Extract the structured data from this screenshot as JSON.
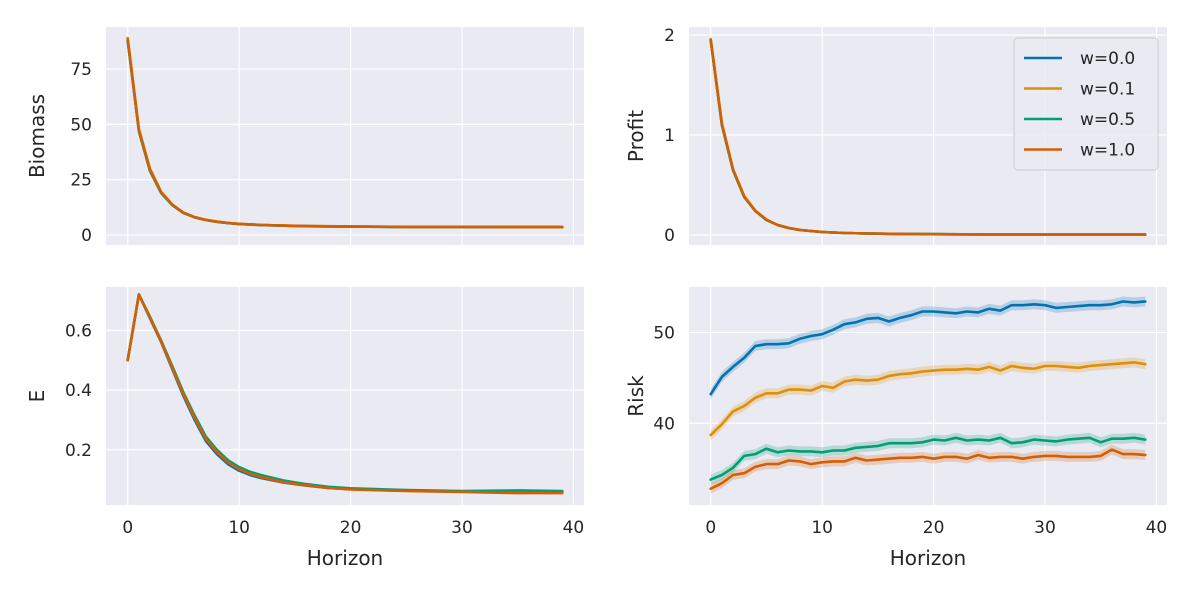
{
  "chart_data": [
    {
      "type": "line",
      "panel": "top-left",
      "title": "",
      "xlabel": "",
      "ylabel": "Biomass",
      "xlim": [
        -1.95,
        40.95
      ],
      "ylim": [
        -4.5,
        94.0
      ],
      "xticks": [
        0,
        10,
        20,
        30,
        40
      ],
      "yticks": [
        0,
        25,
        50,
        75
      ],
      "show_xticklabels": false,
      "grid": true,
      "series": [
        {
          "name": "w=0.0",
          "color": "#0173b2",
          "x": [
            0,
            1,
            2,
            3,
            4,
            5,
            6,
            7,
            8,
            9,
            10,
            12,
            14,
            16,
            18,
            20,
            25,
            30,
            35,
            39
          ],
          "values": [
            88,
            47,
            29,
            19,
            13.5,
            10,
            8,
            6.8,
            6,
            5.4,
            5,
            4.5,
            4.2,
            4,
            3.9,
            3.8,
            3.7,
            3.7,
            3.6,
            3.6
          ]
        },
        {
          "name": "w=0.1",
          "color": "#de8f05",
          "x": [
            0,
            1,
            2,
            3,
            4,
            5,
            6,
            7,
            8,
            9,
            10,
            12,
            14,
            16,
            18,
            20,
            25,
            30,
            35,
            39
          ],
          "values": [
            89,
            48,
            30,
            19.5,
            13.8,
            10.2,
            8.1,
            6.9,
            6.1,
            5.5,
            5.1,
            4.6,
            4.3,
            4.1,
            4,
            3.9,
            3.7,
            3.7,
            3.6,
            3.6
          ]
        },
        {
          "name": "w=0.5",
          "color": "#029e73",
          "x": [
            0,
            1,
            2,
            3,
            4,
            5,
            6,
            7,
            8,
            9,
            10,
            12,
            14,
            16,
            18,
            20,
            25,
            30,
            35,
            39
          ],
          "values": [
            88,
            47,
            29,
            19,
            13.6,
            10,
            8,
            6.8,
            6,
            5.4,
            5,
            4.5,
            4.2,
            4,
            3.9,
            3.8,
            3.7,
            3.7,
            3.6,
            3.6
          ]
        },
        {
          "name": "w=1.0",
          "color": "#d55e00",
          "x": [
            0,
            1,
            2,
            3,
            4,
            5,
            6,
            7,
            8,
            9,
            10,
            12,
            14,
            16,
            18,
            20,
            25,
            30,
            35,
            39
          ],
          "values": [
            88.5,
            47.5,
            29.5,
            19.3,
            13.7,
            10.1,
            8.05,
            6.85,
            6.05,
            5.45,
            5.05,
            4.55,
            4.25,
            4.05,
            3.95,
            3.85,
            3.7,
            3.7,
            3.6,
            3.6
          ]
        }
      ]
    },
    {
      "type": "line",
      "panel": "top-right",
      "title": "",
      "xlabel": "",
      "ylabel": "Profit",
      "xlim": [
        -1.95,
        40.95
      ],
      "ylim": [
        -0.1,
        2.08
      ],
      "xticks": [
        0,
        10,
        20,
        30,
        40
      ],
      "yticks": [
        0,
        1,
        2
      ],
      "show_xticklabels": false,
      "grid": true,
      "legend": {
        "position": "top-right",
        "entries": [
          "w=0.0",
          "w=0.1",
          "w=0.5",
          "w=1.0"
        ]
      },
      "series": [
        {
          "name": "w=0.0",
          "color": "#0173b2",
          "x": [
            0,
            1,
            2,
            3,
            4,
            5,
            6,
            7,
            8,
            9,
            10,
            12,
            14,
            16,
            18,
            20,
            25,
            30,
            35,
            39
          ],
          "values": [
            1.95,
            1.1,
            0.65,
            0.38,
            0.24,
            0.15,
            0.1,
            0.07,
            0.05,
            0.04,
            0.03,
            0.02,
            0.015,
            0.012,
            0.01,
            0.008,
            0.006,
            0.005,
            0.005,
            0.005
          ]
        },
        {
          "name": "w=0.1",
          "color": "#de8f05",
          "x": [
            0,
            1,
            2,
            3,
            4,
            5,
            6,
            7,
            8,
            9,
            10,
            12,
            14,
            16,
            18,
            20,
            25,
            30,
            35,
            39
          ],
          "values": [
            1.96,
            1.12,
            0.66,
            0.39,
            0.245,
            0.155,
            0.1,
            0.07,
            0.05,
            0.04,
            0.03,
            0.02,
            0.015,
            0.012,
            0.01,
            0.008,
            0.006,
            0.005,
            0.005,
            0.005
          ]
        },
        {
          "name": "w=0.5",
          "color": "#029e73",
          "x": [
            0,
            1,
            2,
            3,
            4,
            5,
            6,
            7,
            8,
            9,
            10,
            12,
            14,
            16,
            18,
            20,
            25,
            30,
            35,
            39
          ],
          "values": [
            1.95,
            1.1,
            0.65,
            0.38,
            0.24,
            0.15,
            0.1,
            0.07,
            0.05,
            0.04,
            0.03,
            0.02,
            0.015,
            0.012,
            0.01,
            0.008,
            0.006,
            0.005,
            0.005,
            0.005
          ]
        },
        {
          "name": "w=1.0",
          "color": "#d55e00",
          "x": [
            0,
            1,
            2,
            3,
            4,
            5,
            6,
            7,
            8,
            9,
            10,
            12,
            14,
            16,
            18,
            20,
            25,
            30,
            35,
            39
          ],
          "values": [
            1.95,
            1.11,
            0.655,
            0.385,
            0.242,
            0.152,
            0.1,
            0.07,
            0.05,
            0.04,
            0.03,
            0.02,
            0.015,
            0.012,
            0.01,
            0.008,
            0.006,
            0.005,
            0.005,
            0.005
          ]
        }
      ]
    },
    {
      "type": "line",
      "panel": "bottom-left",
      "title": "",
      "xlabel": "Horizon",
      "ylabel": "E",
      "xlim": [
        -1.95,
        40.95
      ],
      "ylim": [
        0.015,
        0.745
      ],
      "xticks": [
        0,
        10,
        20,
        30,
        40
      ],
      "yticks": [
        0.2,
        0.4,
        0.6
      ],
      "show_xticklabels": true,
      "grid": true,
      "series": [
        {
          "name": "w=0.0",
          "color": "#0173b2",
          "x": [
            0,
            1,
            2,
            3,
            4,
            5,
            6,
            7,
            8,
            9,
            10,
            11,
            12,
            14,
            16,
            18,
            20,
            25,
            30,
            35,
            39
          ],
          "values": [
            0.5,
            0.72,
            0.64,
            0.56,
            0.47,
            0.38,
            0.3,
            0.23,
            0.185,
            0.152,
            0.13,
            0.115,
            0.105,
            0.09,
            0.08,
            0.072,
            0.068,
            0.063,
            0.06,
            0.06,
            0.058
          ]
        },
        {
          "name": "w=0.1",
          "color": "#de8f05",
          "x": [
            0,
            1,
            2,
            3,
            4,
            5,
            6,
            7,
            8,
            9,
            10,
            11,
            12,
            14,
            16,
            18,
            20,
            25,
            30,
            35,
            39
          ],
          "values": [
            0.5,
            0.72,
            0.645,
            0.565,
            0.478,
            0.39,
            0.31,
            0.24,
            0.195,
            0.16,
            0.137,
            0.12,
            0.11,
            0.093,
            0.082,
            0.074,
            0.069,
            0.063,
            0.06,
            0.058,
            0.057
          ]
        },
        {
          "name": "w=0.5",
          "color": "#029e73",
          "x": [
            0,
            1,
            2,
            3,
            4,
            5,
            6,
            7,
            8,
            9,
            10,
            11,
            12,
            14,
            16,
            18,
            20,
            25,
            30,
            35,
            39
          ],
          "values": [
            0.5,
            0.72,
            0.645,
            0.565,
            0.48,
            0.392,
            0.315,
            0.245,
            0.2,
            0.165,
            0.142,
            0.126,
            0.115,
            0.097,
            0.085,
            0.076,
            0.071,
            0.065,
            0.062,
            0.064,
            0.062
          ]
        },
        {
          "name": "w=1.0",
          "color": "#d55e00",
          "x": [
            0,
            1,
            2,
            3,
            4,
            5,
            6,
            7,
            8,
            9,
            10,
            11,
            12,
            14,
            16,
            18,
            20,
            25,
            30,
            35,
            39
          ],
          "values": [
            0.5,
            0.72,
            0.642,
            0.562,
            0.474,
            0.386,
            0.307,
            0.237,
            0.192,
            0.158,
            0.135,
            0.119,
            0.108,
            0.091,
            0.081,
            0.072,
            0.067,
            0.062,
            0.059,
            0.055,
            0.055
          ]
        }
      ]
    },
    {
      "type": "line",
      "panel": "bottom-right",
      "title": "",
      "xlabel": "Horizon",
      "ylabel": "Risk",
      "xlim": [
        -1.95,
        40.95
      ],
      "ylim": [
        31.0,
        55.0
      ],
      "xticks": [
        0,
        10,
        20,
        30,
        40
      ],
      "yticks": [
        40,
        50
      ],
      "show_xticklabels": true,
      "grid": true,
      "series": [
        {
          "name": "w=0.0",
          "color": "#0173b2",
          "x": [
            0,
            1,
            2,
            3,
            4,
            5,
            6,
            7,
            8,
            9,
            10,
            11,
            12,
            13,
            14,
            15,
            16,
            17,
            18,
            19,
            20,
            21,
            22,
            23,
            24,
            25,
            26,
            27,
            28,
            29,
            30,
            31,
            32,
            33,
            34,
            35,
            36,
            37,
            38,
            39
          ],
          "values": [
            43.2,
            45.1,
            46.2,
            47.2,
            48.5,
            48.7,
            48.7,
            48.8,
            49.3,
            49.6,
            49.8,
            50.3,
            50.9,
            51.1,
            51.5,
            51.6,
            51.2,
            51.6,
            51.9,
            52.3,
            52.3,
            52.2,
            52.1,
            52.3,
            52.2,
            52.6,
            52.4,
            53.0,
            53.0,
            53.1,
            53.0,
            52.7,
            52.8,
            52.9,
            53.0,
            53.0,
            53.1,
            53.4,
            53.3,
            53.4
          ]
        },
        {
          "name": "w=0.1",
          "color": "#de8f05",
          "x": [
            0,
            1,
            2,
            3,
            4,
            5,
            6,
            7,
            8,
            9,
            10,
            11,
            12,
            13,
            14,
            15,
            16,
            17,
            18,
            19,
            20,
            21,
            22,
            23,
            24,
            25,
            26,
            27,
            28,
            29,
            30,
            31,
            32,
            33,
            34,
            35,
            36,
            37,
            38,
            39
          ],
          "values": [
            38.7,
            39.9,
            41.3,
            41.9,
            42.8,
            43.3,
            43.3,
            43.7,
            43.7,
            43.6,
            44.1,
            43.9,
            44.6,
            44.8,
            44.7,
            44.8,
            45.2,
            45.4,
            45.5,
            45.7,
            45.8,
            45.9,
            45.9,
            46.0,
            45.9,
            46.2,
            45.8,
            46.3,
            46.1,
            46.0,
            46.3,
            46.3,
            46.2,
            46.1,
            46.3,
            46.4,
            46.5,
            46.6,
            46.7,
            46.5
          ]
        },
        {
          "name": "w=0.5",
          "color": "#029e73",
          "x": [
            0,
            1,
            2,
            3,
            4,
            5,
            6,
            7,
            8,
            9,
            10,
            11,
            12,
            13,
            14,
            15,
            16,
            17,
            18,
            19,
            20,
            21,
            22,
            23,
            24,
            25,
            26,
            27,
            28,
            29,
            30,
            31,
            32,
            33,
            34,
            35,
            36,
            37,
            38,
            39
          ],
          "values": [
            33.8,
            34.3,
            35.1,
            36.4,
            36.6,
            37.2,
            36.8,
            37.0,
            36.9,
            36.9,
            36.8,
            37.0,
            37.0,
            37.3,
            37.4,
            37.5,
            37.8,
            37.8,
            37.8,
            37.9,
            38.2,
            38.1,
            38.4,
            38.1,
            38.2,
            38.1,
            38.4,
            37.8,
            37.9,
            38.2,
            38.1,
            38.0,
            38.2,
            38.3,
            38.4,
            37.9,
            38.3,
            38.3,
            38.4,
            38.2
          ]
        },
        {
          "name": "w=1.0",
          "color": "#d55e00",
          "x": [
            0,
            1,
            2,
            3,
            4,
            5,
            6,
            7,
            8,
            9,
            10,
            11,
            12,
            13,
            14,
            15,
            16,
            17,
            18,
            19,
            20,
            21,
            22,
            23,
            24,
            25,
            26,
            27,
            28,
            29,
            30,
            31,
            32,
            33,
            34,
            35,
            36,
            37,
            38,
            39
          ],
          "values": [
            32.8,
            33.4,
            34.3,
            34.5,
            35.2,
            35.5,
            35.5,
            35.9,
            35.8,
            35.5,
            35.7,
            35.8,
            35.8,
            36.2,
            35.9,
            36.0,
            36.1,
            36.2,
            36.2,
            36.3,
            36.1,
            36.3,
            36.3,
            36.1,
            36.5,
            36.2,
            36.3,
            36.3,
            36.1,
            36.3,
            36.4,
            36.4,
            36.3,
            36.3,
            36.3,
            36.4,
            37.1,
            36.6,
            36.6,
            36.5
          ]
        }
      ]
    }
  ]
}
